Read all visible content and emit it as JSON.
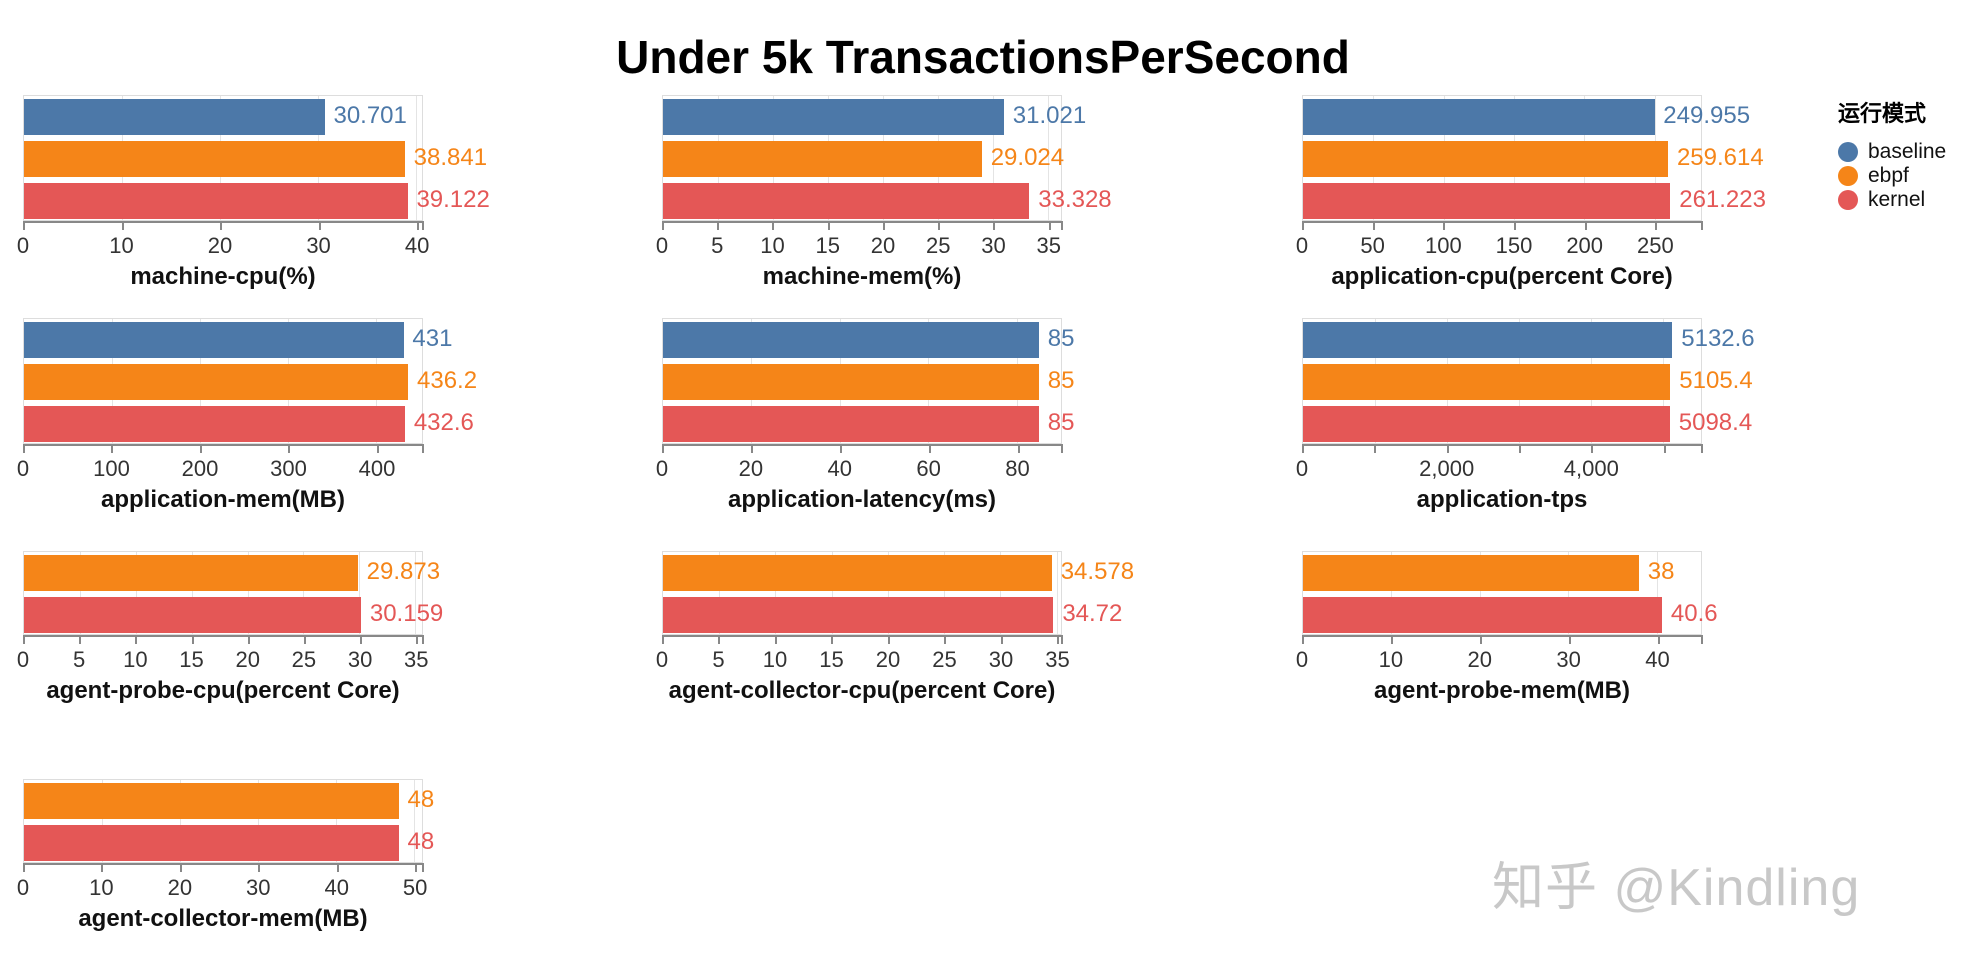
{
  "title": "Under 5k TransactionsPerSecond",
  "watermark": "知乎 @Kindling",
  "series_colors": {
    "baseline": "#4c78a8",
    "ebpf": "#f58518",
    "kernel": "#e45756"
  },
  "legend": {
    "title": "运行模式",
    "items": [
      {
        "label": "baseline",
        "color": "#4c78a8"
      },
      {
        "label": "ebpf",
        "color": "#f58518"
      },
      {
        "label": "kernel",
        "color": "#e45756"
      }
    ]
  },
  "chart_data": [
    {
      "type": "bar",
      "title": "machine-cpu(%)",
      "axis_max": 40.6,
      "ticks": [
        {
          "value": 0,
          "label": "0"
        },
        {
          "value": 10,
          "label": "10"
        },
        {
          "value": 20,
          "label": "20"
        },
        {
          "value": 30,
          "label": "30"
        },
        {
          "value": 40,
          "label": "40"
        }
      ],
      "bars": [
        {
          "series": "baseline",
          "value": 30.701,
          "label": "30.701"
        },
        {
          "series": "ebpf",
          "value": 38.841,
          "label": "38.841"
        },
        {
          "series": "kernel",
          "value": 39.122,
          "label": "39.122"
        }
      ]
    },
    {
      "type": "bar",
      "title": "machine-mem(%)",
      "axis_max": 36.2,
      "ticks": [
        {
          "value": 0,
          "label": "0"
        },
        {
          "value": 5,
          "label": "5"
        },
        {
          "value": 10,
          "label": "10"
        },
        {
          "value": 15,
          "label": "15"
        },
        {
          "value": 20,
          "label": "20"
        },
        {
          "value": 25,
          "label": "25"
        },
        {
          "value": 30,
          "label": "30"
        },
        {
          "value": 35,
          "label": "35"
        }
      ],
      "bars": [
        {
          "series": "baseline",
          "value": 31.021,
          "label": "31.021"
        },
        {
          "series": "ebpf",
          "value": 29.024,
          "label": "29.024"
        },
        {
          "series": "kernel",
          "value": 33.328,
          "label": "33.328"
        }
      ]
    },
    {
      "type": "bar",
      "title": "application-cpu(percent Core)",
      "axis_max": 283,
      "ticks": [
        {
          "value": 0,
          "label": "0"
        },
        {
          "value": 50,
          "label": "50"
        },
        {
          "value": 100,
          "label": "100"
        },
        {
          "value": 150,
          "label": "150"
        },
        {
          "value": 200,
          "label": "200"
        },
        {
          "value": 250,
          "label": "250"
        }
      ],
      "bars": [
        {
          "series": "baseline",
          "value": 249.955,
          "label": "249.955"
        },
        {
          "series": "ebpf",
          "value": 259.614,
          "label": "259.614"
        },
        {
          "series": "kernel",
          "value": 261.223,
          "label": "261.223"
        }
      ]
    },
    {
      "type": "bar",
      "title": "application-mem(MB)",
      "axis_max": 452,
      "ticks": [
        {
          "value": 0,
          "label": "0"
        },
        {
          "value": 100,
          "label": "100"
        },
        {
          "value": 200,
          "label": "200"
        },
        {
          "value": 300,
          "label": "300"
        },
        {
          "value": 400,
          "label": "400"
        }
      ],
      "bars": [
        {
          "series": "baseline",
          "value": 431,
          "label": "431"
        },
        {
          "series": "ebpf",
          "value": 436.2,
          "label": "436.2"
        },
        {
          "series": "kernel",
          "value": 432.6,
          "label": "432.6"
        }
      ]
    },
    {
      "type": "bar",
      "title": "application-latency(ms)",
      "axis_max": 90,
      "ticks": [
        {
          "value": 0,
          "label": "0"
        },
        {
          "value": 20,
          "label": "20"
        },
        {
          "value": 40,
          "label": "40"
        },
        {
          "value": 60,
          "label": "60"
        },
        {
          "value": 80,
          "label": "80"
        }
      ],
      "bars": [
        {
          "series": "baseline",
          "value": 85,
          "label": "85"
        },
        {
          "series": "ebpf",
          "value": 85,
          "label": "85"
        },
        {
          "series": "kernel",
          "value": 85,
          "label": "85"
        }
      ]
    },
    {
      "type": "bar",
      "title": "application-tps",
      "axis_max": 5530,
      "ticks": [
        {
          "value": 0,
          "label": "0"
        },
        {
          "value": 1000,
          "label": ""
        },
        {
          "value": 2000,
          "label": "2,000"
        },
        {
          "value": 3000,
          "label": ""
        },
        {
          "value": 4000,
          "label": "4,000"
        },
        {
          "value": 5000,
          "label": ""
        }
      ],
      "bars": [
        {
          "series": "baseline",
          "value": 5132.6,
          "label": "5132.6"
        },
        {
          "series": "ebpf",
          "value": 5105.4,
          "label": "5105.4"
        },
        {
          "series": "kernel",
          "value": 5098.4,
          "label": "5098.4"
        }
      ]
    },
    {
      "type": "bar",
      "title": "agent-probe-cpu(percent Core)",
      "axis_max": 35.6,
      "ticks": [
        {
          "value": 0,
          "label": "0"
        },
        {
          "value": 5,
          "label": "5"
        },
        {
          "value": 10,
          "label": "10"
        },
        {
          "value": 15,
          "label": "15"
        },
        {
          "value": 20,
          "label": "20"
        },
        {
          "value": 25,
          "label": "25"
        },
        {
          "value": 30,
          "label": "30"
        },
        {
          "value": 35,
          "label": "35"
        }
      ],
      "bars": [
        {
          "series": "ebpf",
          "value": 29.873,
          "label": "29.873"
        },
        {
          "series": "kernel",
          "value": 30.159,
          "label": "30.159"
        }
      ]
    },
    {
      "type": "bar",
      "title": "agent-collector-cpu(percent Core)",
      "axis_max": 35.4,
      "ticks": [
        {
          "value": 0,
          "label": "0"
        },
        {
          "value": 5,
          "label": "5"
        },
        {
          "value": 10,
          "label": "10"
        },
        {
          "value": 15,
          "label": "15"
        },
        {
          "value": 20,
          "label": "20"
        },
        {
          "value": 25,
          "label": "25"
        },
        {
          "value": 30,
          "label": "30"
        },
        {
          "value": 35,
          "label": "35"
        }
      ],
      "bars": [
        {
          "series": "ebpf",
          "value": 34.578,
          "label": "34.578"
        },
        {
          "series": "kernel",
          "value": 34.72,
          "label": "34.72"
        }
      ]
    },
    {
      "type": "bar",
      "title": "agent-probe-mem(MB)",
      "axis_max": 45,
      "ticks": [
        {
          "value": 0,
          "label": "0"
        },
        {
          "value": 10,
          "label": "10"
        },
        {
          "value": 20,
          "label": "20"
        },
        {
          "value": 30,
          "label": "30"
        },
        {
          "value": 40,
          "label": "40"
        }
      ],
      "bars": [
        {
          "series": "ebpf",
          "value": 38,
          "label": "38"
        },
        {
          "series": "kernel",
          "value": 40.6,
          "label": "40.6"
        }
      ]
    },
    {
      "type": "bar",
      "title": "agent-collector-mem(MB)",
      "axis_max": 51,
      "ticks": [
        {
          "value": 0,
          "label": "0"
        },
        {
          "value": 10,
          "label": "10"
        },
        {
          "value": 20,
          "label": "20"
        },
        {
          "value": 30,
          "label": "30"
        },
        {
          "value": 40,
          "label": "40"
        },
        {
          "value": 50,
          "label": "50"
        }
      ],
      "bars": [
        {
          "series": "ebpf",
          "value": 48,
          "label": "48"
        },
        {
          "series": "kernel",
          "value": 48,
          "label": "48"
        }
      ]
    }
  ]
}
